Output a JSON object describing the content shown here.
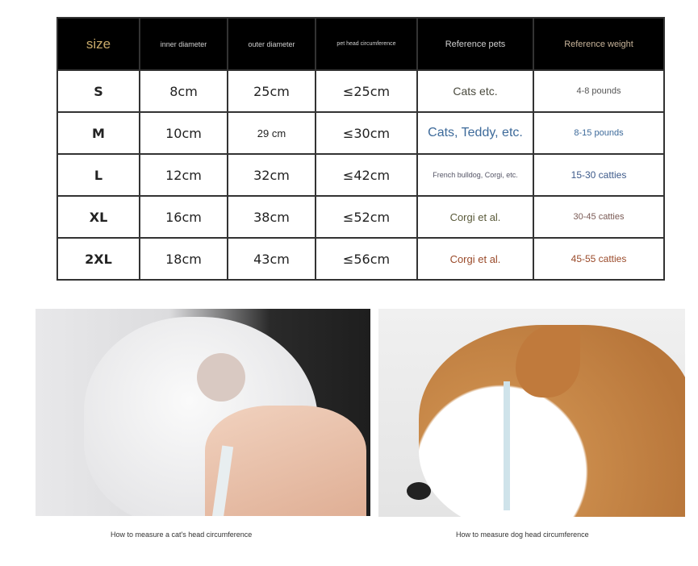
{
  "table": {
    "headers": [
      "size",
      "inner diameter",
      "outer diameter",
      "pet head circumference",
      "Reference pets",
      "Reference weight"
    ],
    "header_colors": [
      "#c8a96a",
      "#d0d0d0",
      "#d0d0d0",
      "#d0d0d0",
      "#cfcfcf",
      "#c8b49a"
    ],
    "rows": [
      {
        "size": "S",
        "inner": "8cm",
        "outer": "25cm",
        "head": "≤25cm",
        "pets": "Cats etc.",
        "weight": "4-8 pounds",
        "pets_color": "#4a4a3e",
        "weight_color": "#555555"
      },
      {
        "size": "M",
        "inner": "10cm",
        "outer": "29 cm",
        "head": "≤30cm",
        "pets": "Cats, Teddy, etc.",
        "weight": "8-15 pounds",
        "pets_color": "#3d6a9a",
        "weight_color": "#3d6a9a"
      },
      {
        "size": "L",
        "inner": "12cm",
        "outer": "32cm",
        "head": "≤42cm",
        "pets": "French bulldog, Corgi, etc.",
        "weight": "15-30 catties",
        "pets_color": "#555566",
        "weight_color": "#3d5a8a"
      },
      {
        "size": "XL",
        "inner": "16cm",
        "outer": "38cm",
        "head": "≤52cm",
        "pets": "Corgi et al.",
        "weight": "30-45 catties",
        "pets_color": "#5a5a3a",
        "weight_color": "#7a5a55"
      },
      {
        "size": "2XL",
        "inner": "18cm",
        "outer": "43cm",
        "head": "≤56cm",
        "pets": "Corgi et al.",
        "weight": "45-55 catties",
        "pets_color": "#9a4a2a",
        "weight_color": "#9a4a2a"
      }
    ]
  },
  "photos": [
    {
      "caption": "How to measure a cat's head circumference"
    },
    {
      "caption": "How to measure dog head circumference"
    }
  ]
}
